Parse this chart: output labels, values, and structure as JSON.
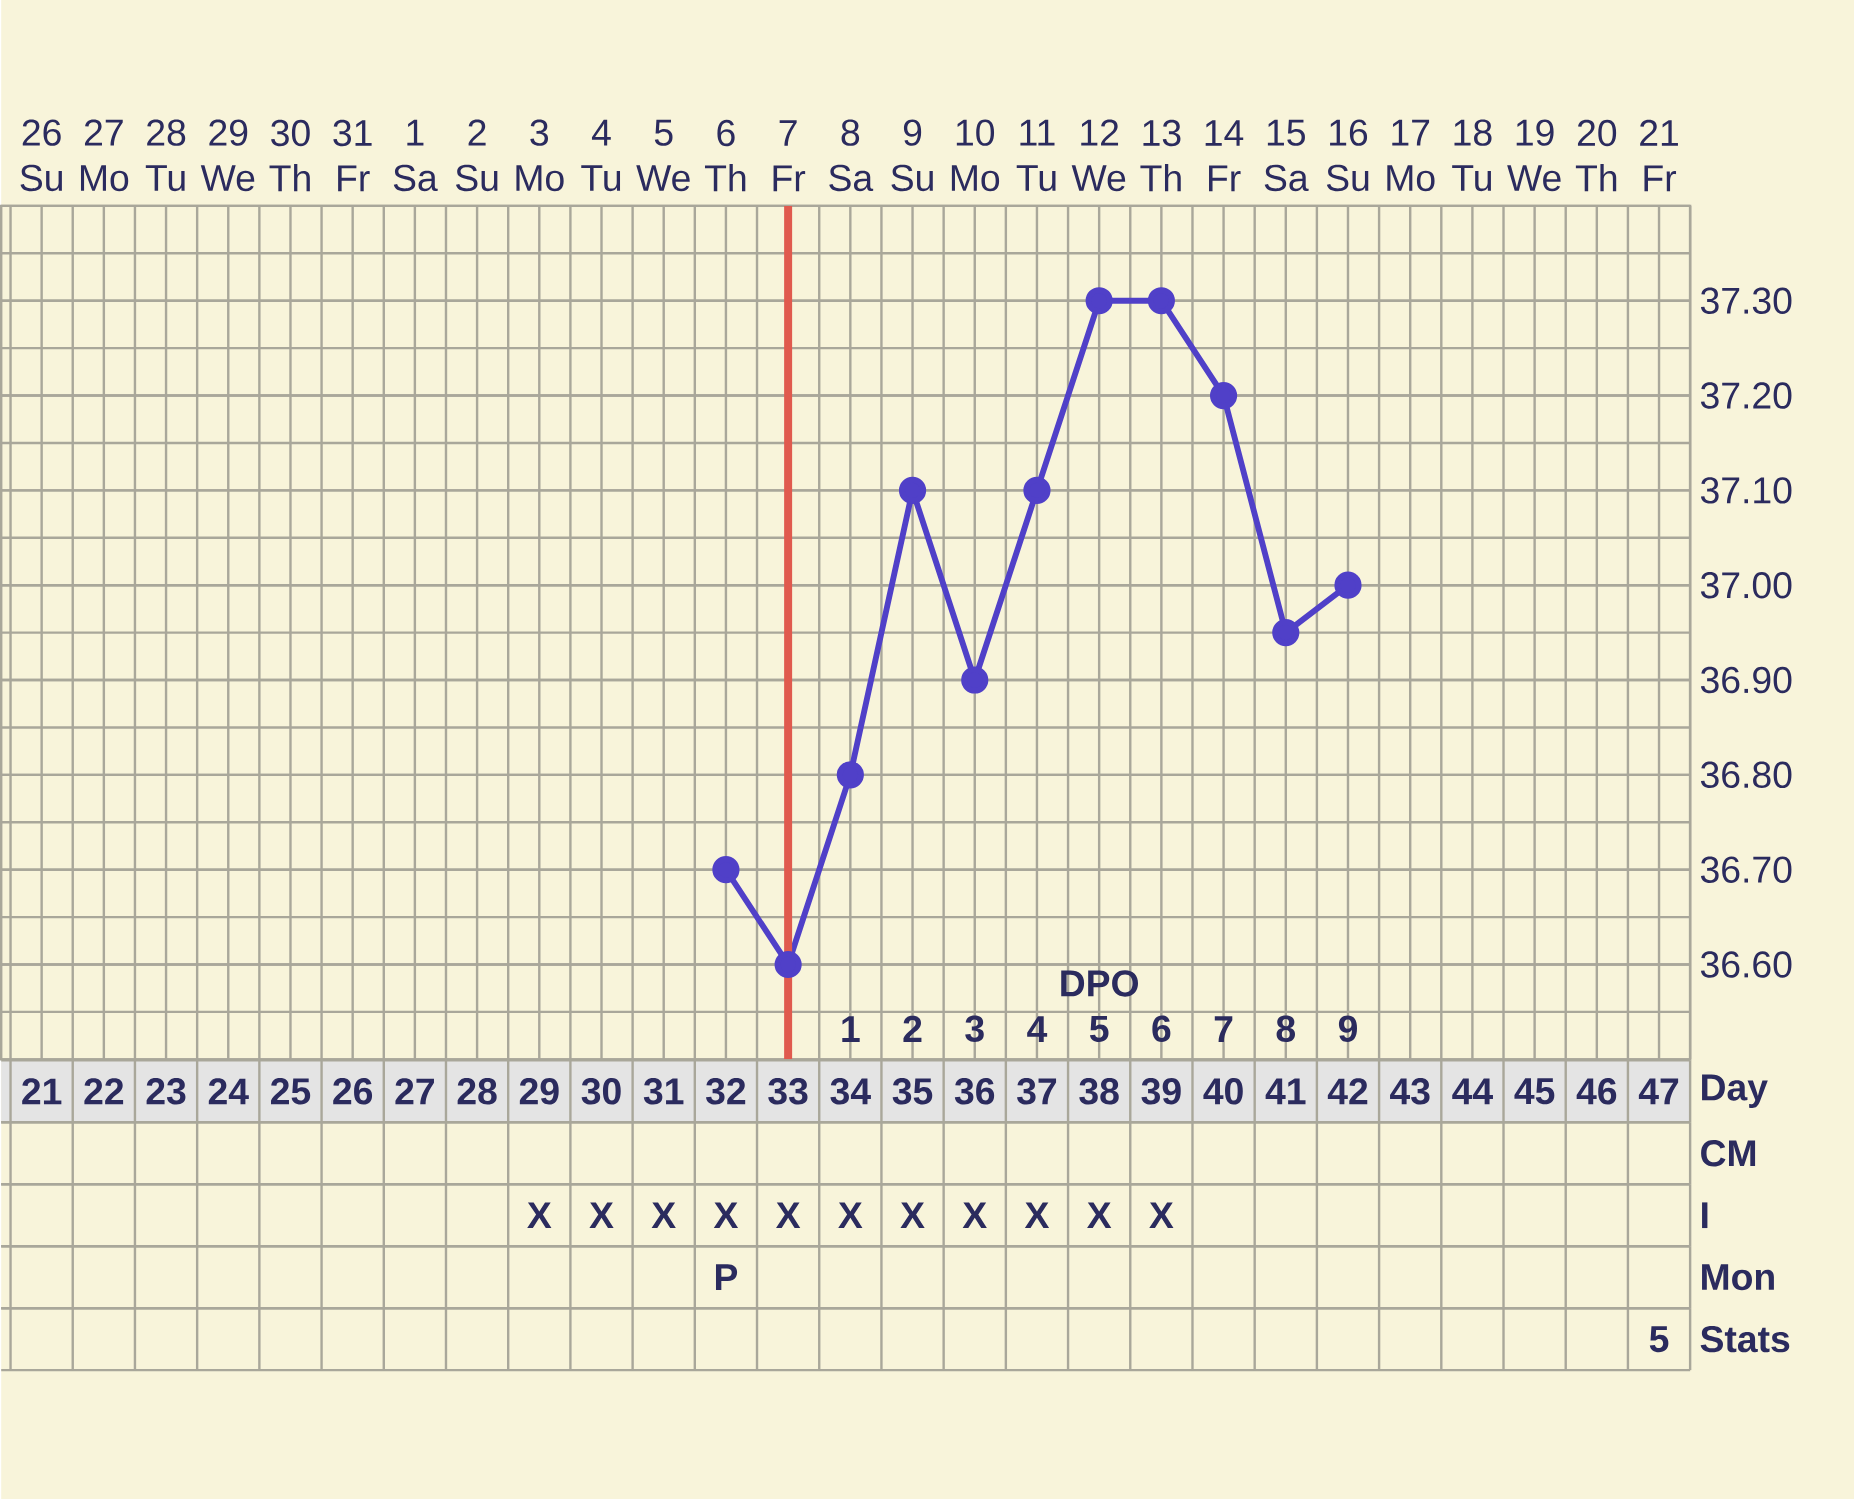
{
  "chart_data": [
    {
      "type": "line",
      "categories": [
        "26 Su",
        "27 Mo",
        "28 Tu",
        "29 We",
        "30 Th",
        "31 Fr",
        "1 Sa",
        "2 Su",
        "3 Mo",
        "4 Tu",
        "5 We",
        "6 Th",
        "7 Fr",
        "8 Sa",
        "9 Su",
        "10 Mo",
        "11 Tu",
        "12 We",
        "13 Th",
        "14 Fr",
        "15 Sa",
        "16 Su",
        "17 Mo",
        "18 Tu",
        "19 We",
        "20 Th",
        "21 Fr"
      ],
      "series": [
        {
          "color": "#5040c8",
          "values": [
            null,
            null,
            null,
            null,
            null,
            null,
            null,
            null,
            null,
            null,
            null,
            36.7,
            36.6,
            36.8,
            37.1,
            36.9,
            37.1,
            37.3,
            37.3,
            37.2,
            36.95,
            37.0,
            null,
            null,
            null,
            null,
            null
          ]
        }
      ],
      "ylim": [
        36.5,
        37.4
      ],
      "yticks": [
        {
          "value": 36.6,
          "label": "36.60"
        },
        {
          "value": 36.7,
          "label": "36.70"
        },
        {
          "value": 36.8,
          "label": "36.80"
        },
        {
          "value": 36.9,
          "label": "36.90"
        },
        {
          "value": 37.0,
          "label": "37.00"
        },
        {
          "value": 37.1,
          "label": "37.10"
        },
        {
          "value": 37.2,
          "label": "37.20"
        },
        {
          "value": 37.3,
          "label": "37.30"
        }
      ],
      "grid": true,
      "marker": "circle",
      "line_style": "solid",
      "ref_lines": [
        {
          "axis": "x",
          "value": "7 Fr",
          "color": "#e05a4e"
        }
      ],
      "x2label": "DPO",
      "x2lim": [
        -12.65,
        14.5
      ],
      "x2ticks": [
        1,
        2,
        3,
        4,
        5,
        6,
        7,
        8,
        9
      ]
    },
    {
      "type": "heatmap",
      "categories": [
        null,
        null,
        null,
        null,
        null,
        null,
        null,
        null,
        null,
        null,
        null,
        null,
        null,
        null,
        null,
        null,
        null,
        null,
        null,
        null,
        null,
        null,
        null,
        null,
        null,
        null,
        null
      ],
      "y_categories": [
        "Day",
        "CM",
        "I",
        "Mon",
        "Stats"
      ],
      "cells": [
        [
          null,
          null,
          null,
          null,
          null,
          null,
          null,
          null,
          null,
          null,
          null,
          null,
          null,
          null,
          null,
          null,
          null,
          null,
          null,
          null,
          null,
          null,
          null,
          null,
          null,
          null,
          null
        ],
        [
          null,
          null,
          null,
          null,
          null,
          null,
          null,
          null,
          null,
          null,
          null,
          null,
          null,
          null,
          null,
          null,
          null,
          null,
          null,
          null,
          null,
          null,
          null,
          null,
          null,
          null,
          null
        ],
        [
          null,
          null,
          null,
          null,
          null,
          null,
          null,
          null,
          null,
          null,
          null,
          null,
          null,
          null,
          null,
          null,
          null,
          null,
          null,
          null,
          null,
          null,
          null,
          null,
          null,
          null,
          null
        ],
        [
          null,
          null,
          null,
          null,
          null,
          null,
          null,
          null,
          null,
          null,
          null,
          null,
          null,
          null,
          null,
          null,
          null,
          null,
          null,
          null,
          null,
          null,
          null,
          null,
          null,
          null,
          null
        ],
        [
          null,
          null,
          null,
          null,
          null,
          null,
          null,
          null,
          null,
          null,
          null,
          null,
          null,
          null,
          null,
          null,
          null,
          null,
          null,
          null,
          null,
          null,
          null,
          null,
          null,
          null,
          null
        ]
      ],
      "cell_labels": [
        [
          "21",
          "22",
          "23",
          "24",
          "25",
          "26",
          "27",
          "28",
          "29",
          "30",
          "31",
          "32",
          "33",
          "34",
          "35",
          "36",
          "37",
          "38",
          "39",
          "40",
          "41",
          "42",
          "43",
          "44",
          "45",
          "46",
          "47"
        ],
        [
          null,
          null,
          null,
          null,
          null,
          null,
          null,
          null,
          null,
          null,
          null,
          null,
          null,
          null,
          null,
          null,
          null,
          null,
          null,
          null,
          null,
          null,
          null,
          null,
          null,
          null,
          null
        ],
        [
          null,
          null,
          null,
          null,
          null,
          null,
          null,
          null,
          "X",
          "X",
          "X",
          "X",
          "X",
          "X",
          "X",
          "X",
          "X",
          "X",
          "X",
          null,
          null,
          null,
          null,
          null,
          null,
          null,
          null
        ],
        [
          null,
          null,
          null,
          null,
          null,
          null,
          null,
          null,
          null,
          null,
          null,
          "P",
          null,
          null,
          null,
          null,
          null,
          null,
          null,
          null,
          null,
          null,
          null,
          null,
          null,
          null,
          null
        ],
        [
          null,
          null,
          null,
          null,
          null,
          null,
          null,
          null,
          null,
          null,
          null,
          null,
          null,
          null,
          null,
          null,
          null,
          null,
          null,
          null,
          null,
          null,
          null,
          null,
          null,
          null,
          "5"
        ]
      ]
    }
  ]
}
